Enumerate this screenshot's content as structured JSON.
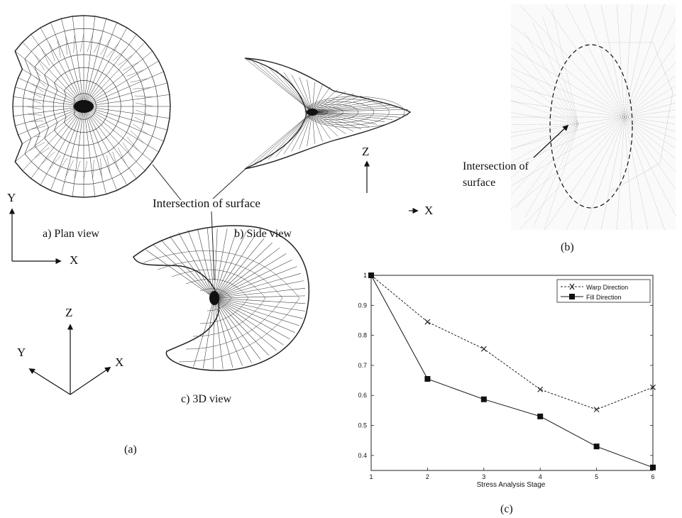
{
  "panel_a": {
    "plan_label": "a) Plan view",
    "side_label": "b) Side view",
    "view3d_label": "c) 3D view",
    "intersection_label": "Intersection of surface",
    "caption": "(a)",
    "axes": {
      "plan": {
        "y": "Y",
        "x": "X"
      },
      "side": {
        "z": "Z",
        "x": "X"
      },
      "iso": {
        "z": "Z",
        "y": "Y",
        "x": "X"
      }
    }
  },
  "panel_b": {
    "label_line1": "Intersection of",
    "label_line2": "surface",
    "caption": "(b)"
  },
  "panel_c": {
    "caption": "(c)"
  },
  "chart_data": {
    "type": "line",
    "title": "",
    "xlabel": "Stress Analysis Stage",
    "ylabel": "",
    "x": [
      1,
      2,
      3,
      4,
      5,
      6
    ],
    "xtick_labels": [
      "1",
      "2",
      "3",
      "4",
      "5",
      "6"
    ],
    "ytick_labels": [
      "0.4",
      "0.5",
      "0.6",
      "0.7",
      "0.8",
      "0.9",
      "1"
    ],
    "xlim": [
      1,
      6
    ],
    "ylim": [
      0.35,
      1.0
    ],
    "grid": false,
    "legend_position": "top-right",
    "series": [
      {
        "name": "Warp Direction",
        "values": [
          1.0,
          0.845,
          0.755,
          0.62,
          0.553,
          0.627
        ],
        "marker": "x",
        "line": "dashed",
        "color": "#222222"
      },
      {
        "name": "Fill Direction",
        "values": [
          1.0,
          0.655,
          0.587,
          0.53,
          0.43,
          0.36
        ],
        "marker": "square",
        "line": "solid",
        "color": "#111111"
      }
    ]
  }
}
